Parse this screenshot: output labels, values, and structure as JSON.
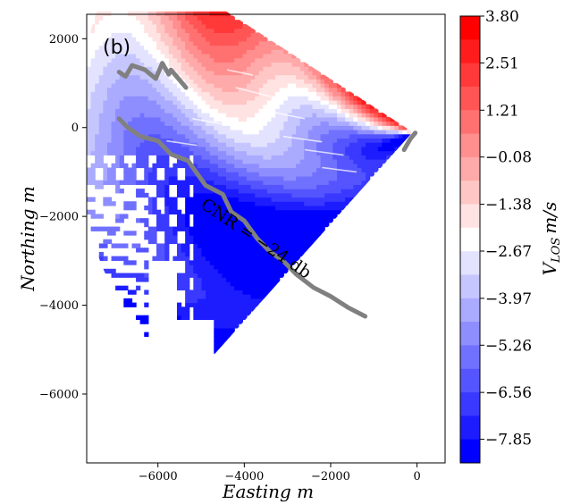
{
  "chart_data": {
    "type": "heatmap",
    "panel_label": "(b)",
    "xlabel": "Easting m",
    "ylabel": "Northing m",
    "xlim": [
      -7650,
      650
    ],
    "ylim": [
      -7550,
      2550
    ],
    "x_ticks": [
      -6000,
      -4000,
      -2000,
      0
    ],
    "x_tick_labels": [
      "−6000",
      "−4000",
      "−2000",
      "0"
    ],
    "y_ticks": [
      2000,
      0,
      -2000,
      -4000,
      -6000
    ],
    "y_tick_labels": [
      "2000",
      "0",
      "−2000",
      "−4000",
      "−6000"
    ],
    "colorbar": {
      "label": "V_LOS m/s",
      "label_main": "V",
      "label_sub": "LOS",
      "label_unit": "m/s",
      "range": [
        -8.5,
        3.8
      ],
      "ticks": [
        3.8,
        2.51,
        1.21,
        -0.08,
        -1.38,
        -2.67,
        -3.97,
        -5.26,
        -6.56,
        -7.85
      ],
      "tick_labels": [
        "3.80",
        "2.51",
        "1.21",
        "−0.08",
        "−1.38",
        "−2.67",
        "−3.97",
        "−5.26",
        "−6.56",
        "−7.85"
      ],
      "colors": [
        "#0000ff",
        "#ffffff",
        "#ff0000"
      ],
      "levels": 19
    },
    "scan_origin": [
      -100,
      -100
    ],
    "contour": {
      "label": "CNR = −24 db",
      "value": -24,
      "color": "#808080"
    }
  }
}
